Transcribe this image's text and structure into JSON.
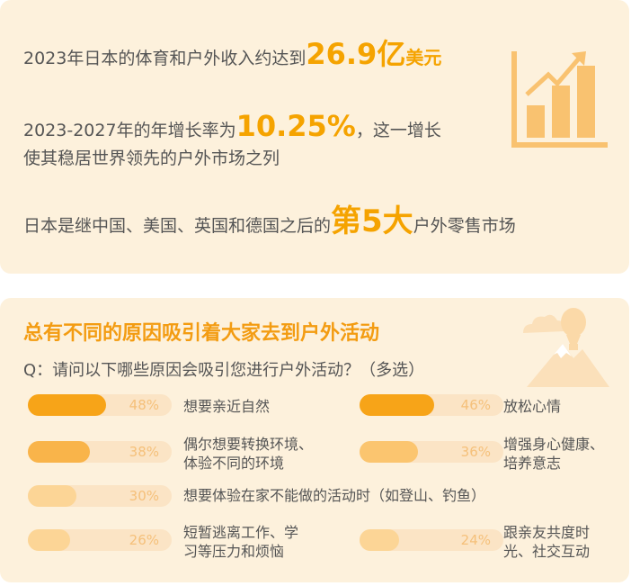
{
  "stats": {
    "line1_prefix": "2023年日本的体育和户外收入约达到",
    "line1_value": "26.9亿",
    "line1_suffix": "美元",
    "line2_prefix": "2023-2027年的年增长率为",
    "line2_value": "10.25%",
    "line2_suffix": "，这一增长",
    "line2b": "使其稳居世界领先的户外市场之列",
    "line3_prefix": "日本是继中国、美国、英国和德国之后的",
    "line3_value": "第5大",
    "line3_suffix": "户外零售市场"
  },
  "survey": {
    "title": "总有不同的原因吸引着大家去到户外活动",
    "question": "Q：请问以下哪些原因会吸引您进行户外活动？（多选）",
    "items": [
      {
        "percent_label": "48%",
        "value": 48,
        "line1": "想要亲近自然",
        "line2": "",
        "color": "#f7a418"
      },
      {
        "percent_label": "46%",
        "value": 46,
        "line1": "放松心情",
        "line2": "",
        "color": "#f7a418"
      },
      {
        "percent_label": "38%",
        "value": 38,
        "line1": "偶尔想要转换环境、",
        "line2": "体验不同的环境",
        "color": "#f9b44a"
      },
      {
        "percent_label": "36%",
        "value": 36,
        "line1": "增强身心健康、",
        "line2": "培养意志",
        "color": "#fbc56f"
      },
      {
        "percent_label": "30%",
        "value": 30,
        "line1": "想要体验在家不能做的活动时（如登山、钓鱼）",
        "line2": "",
        "color": "#fcd596"
      },
      {
        "percent_label": "26%",
        "value": 26,
        "line1": "短暂逃离工作、学",
        "line2": "习等压力和烦恼",
        "color": "#fcd596"
      },
      {
        "percent_label": "24%",
        "value": 24,
        "line1": "跟亲友共度时",
        "line2": "光、社交互动",
        "color": "#fcd596"
      }
    ]
  },
  "icons": {
    "chart": "growth-chart-icon",
    "decoration": "mountain-balloon-icon"
  },
  "colors": {
    "card_bg": "#fdf1dc",
    "accent": "#f5a300",
    "title": "#f39c12"
  }
}
